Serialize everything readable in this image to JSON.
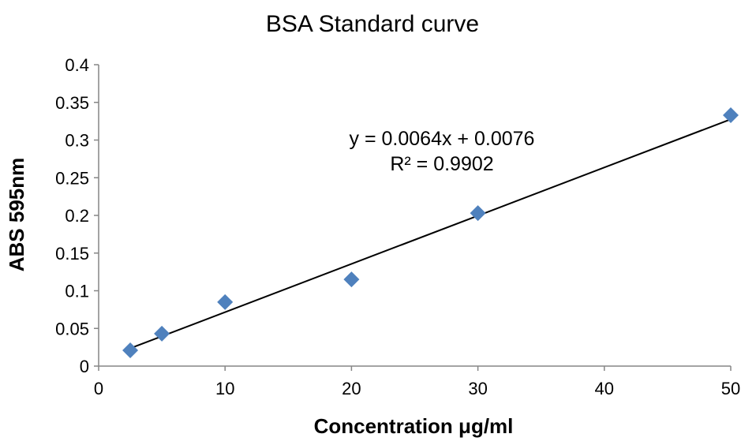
{
  "chart_data": {
    "type": "scatter",
    "title": "BSA Standard curve",
    "xlabel": "Concentration μg/ml",
    "ylabel": "ABS 595nm",
    "xlim": [
      0,
      50
    ],
    "ylim": [
      0,
      0.4
    ],
    "x_ticks": [
      "0",
      "10",
      "20",
      "30",
      "40",
      "50"
    ],
    "y_ticks": [
      "0",
      "0.05",
      "0.1",
      "0.15",
      "0.2",
      "0.25",
      "0.3",
      "0.35",
      "0.4"
    ],
    "grid": false,
    "legend": "none",
    "series": [
      {
        "marker": "diamond",
        "color": "#4F81BD",
        "points": [
          {
            "x": 2.5,
            "y": 0.021
          },
          {
            "x": 5,
            "y": 0.043
          },
          {
            "x": 10,
            "y": 0.085
          },
          {
            "x": 20,
            "y": 0.115
          },
          {
            "x": 30,
            "y": 0.203
          },
          {
            "x": 50,
            "y": 0.333
          }
        ]
      }
    ],
    "trendline": {
      "type": "linear",
      "slope": 0.0064,
      "intercept": 0.0076,
      "x_start": 2.5,
      "x_end": 50,
      "color": "#000000"
    },
    "annotations": {
      "equation": "y = 0.0064x + 0.0076",
      "r_squared": "R² = 0.9902"
    }
  }
}
